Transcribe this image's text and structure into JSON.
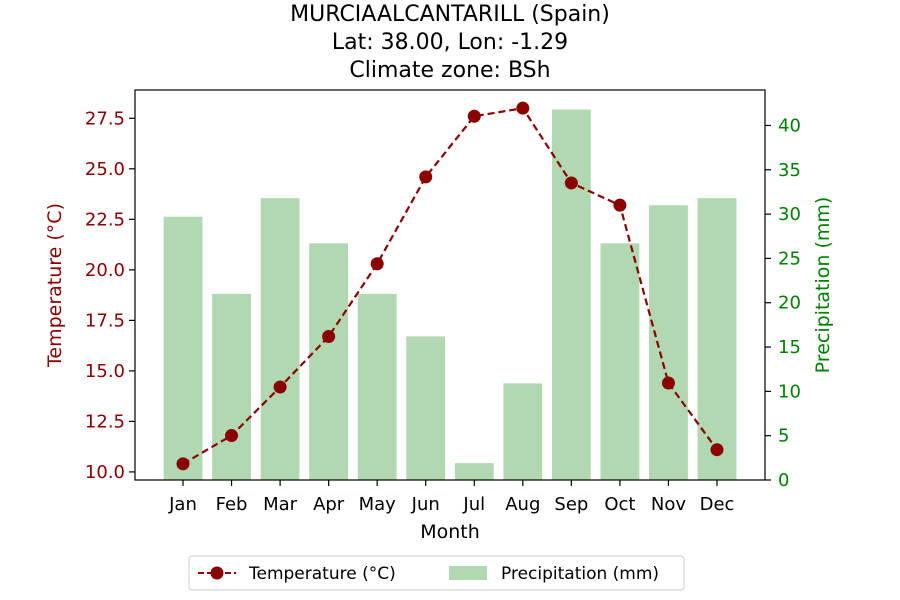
{
  "chart_data": {
    "type": "bar+line",
    "title_lines": [
      "MURCIAALCANTARILL (Spain)",
      "Lat: 38.00, Lon: -1.29",
      "Climate zone: BSh"
    ],
    "xlabel": "Month",
    "categories": [
      "Jan",
      "Feb",
      "Mar",
      "Apr",
      "May",
      "Jun",
      "Jul",
      "Aug",
      "Sep",
      "Oct",
      "Nov",
      "Dec"
    ],
    "left_axis": {
      "label": "Temperature (°C)",
      "ylim": [
        9.6,
        28.9
      ],
      "ticks": [
        "10.0",
        "12.5",
        "15.0",
        "17.5",
        "20.0",
        "22.5",
        "25.0",
        "27.5"
      ],
      "color": "#8b0000"
    },
    "right_axis": {
      "label": "Precipitation (mm)",
      "ylim": [
        0,
        44
      ],
      "ticks": [
        "0",
        "5",
        "10",
        "15",
        "20",
        "25",
        "30",
        "35",
        "40"
      ],
      "color": "#008000"
    },
    "series": [
      {
        "name": "Temperature (°C)",
        "kind": "line",
        "axis": "left",
        "color": "#8b0000",
        "values": [
          10.4,
          11.8,
          14.2,
          16.7,
          20.3,
          24.6,
          27.6,
          28.0,
          24.3,
          23.2,
          14.4,
          11.1
        ]
      },
      {
        "name": "Precipitation (mm)",
        "kind": "bar",
        "axis": "right",
        "color": "#b2d8b2",
        "values": [
          29.7,
          21.0,
          31.8,
          26.7,
          21.0,
          16.2,
          1.9,
          10.9,
          41.8,
          26.7,
          31.0,
          31.8
        ]
      }
    ],
    "legend": {
      "placement": "bottom-center",
      "entries": [
        "Temperature (°C)",
        "Precipitation (mm)"
      ]
    },
    "grid": false
  }
}
